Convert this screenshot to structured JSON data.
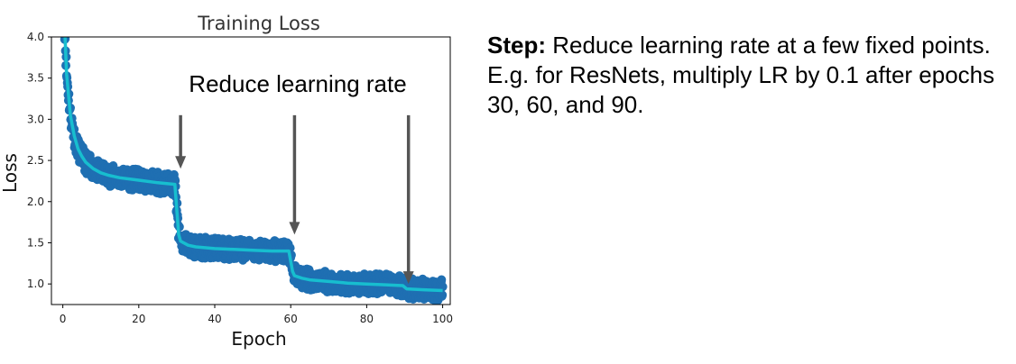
{
  "chart_data": {
    "type": "scatter",
    "title": "Training Loss",
    "xlabel": "Epoch",
    "ylabel": "Loss",
    "xlim": [
      -3,
      102
    ],
    "ylim": [
      0.75,
      4.0
    ],
    "x_ticks": [
      0,
      20,
      40,
      60,
      80,
      100
    ],
    "x_tick_labels": [
      "0",
      "20",
      "40",
      "60",
      "80",
      "100"
    ],
    "y_ticks": [
      1.0,
      1.5,
      2.0,
      2.5,
      3.0,
      3.5,
      4.0
    ],
    "y_tick_labels": [
      "1.0",
      "1.5",
      "2.0",
      "2.5",
      "3.0",
      "3.5",
      "4.0"
    ],
    "grid": false,
    "series": [
      {
        "kind": "scatter",
        "color": "#1f6fb2",
        "x": [
          0.5,
          1,
          2,
          3,
          4,
          5,
          6,
          8,
          10,
          12,
          15,
          20,
          25,
          29.5,
          30.5,
          31,
          33,
          35,
          40,
          45,
          50,
          55,
          59.5,
          60.5,
          61,
          63,
          65,
          70,
          75,
          80,
          85,
          89.5,
          90.5,
          95,
          100
        ],
        "y": [
          4.1,
          3.55,
          3.05,
          2.8,
          2.64,
          2.55,
          2.48,
          2.4,
          2.35,
          2.32,
          2.29,
          2.26,
          2.23,
          2.21,
          1.6,
          1.52,
          1.47,
          1.45,
          1.43,
          1.42,
          1.41,
          1.4,
          1.4,
          1.15,
          1.1,
          1.07,
          1.05,
          1.03,
          1.01,
          1.0,
          0.99,
          0.98,
          0.94,
          0.93,
          0.92
        ],
        "spread": 0.13
      },
      {
        "kind": "line",
        "color": "#17becf",
        "x": [
          0.5,
          1,
          2,
          3,
          4,
          5,
          6,
          8,
          10,
          12,
          15,
          20,
          25,
          29.5,
          30.5,
          31,
          33,
          35,
          40,
          45,
          50,
          55,
          59.5,
          60.5,
          61,
          63,
          65,
          70,
          75,
          80,
          85,
          89.5,
          90.5,
          95,
          100
        ],
        "y": [
          4.1,
          3.55,
          3.05,
          2.8,
          2.64,
          2.55,
          2.48,
          2.4,
          2.35,
          2.32,
          2.29,
          2.26,
          2.23,
          2.21,
          1.6,
          1.52,
          1.47,
          1.45,
          1.43,
          1.42,
          1.41,
          1.4,
          1.4,
          1.15,
          1.1,
          1.07,
          1.05,
          1.03,
          1.01,
          1.0,
          0.99,
          0.98,
          0.94,
          0.93,
          0.92
        ]
      }
    ],
    "annotations": [
      {
        "text": "Reduce learning rate",
        "arrow_x": [
          31,
          61,
          91
        ],
        "arrow_from_y": [
          3.05,
          3.05,
          3.05
        ],
        "arrow_to_y": [
          2.4,
          1.6,
          1.0
        ]
      }
    ]
  },
  "note": {
    "heading": "Step:",
    "body": " Reduce learning rate at a few fixed points. E.g. for ResNets, multiply LR by 0.1 after epochs 30, 60, and 90."
  }
}
